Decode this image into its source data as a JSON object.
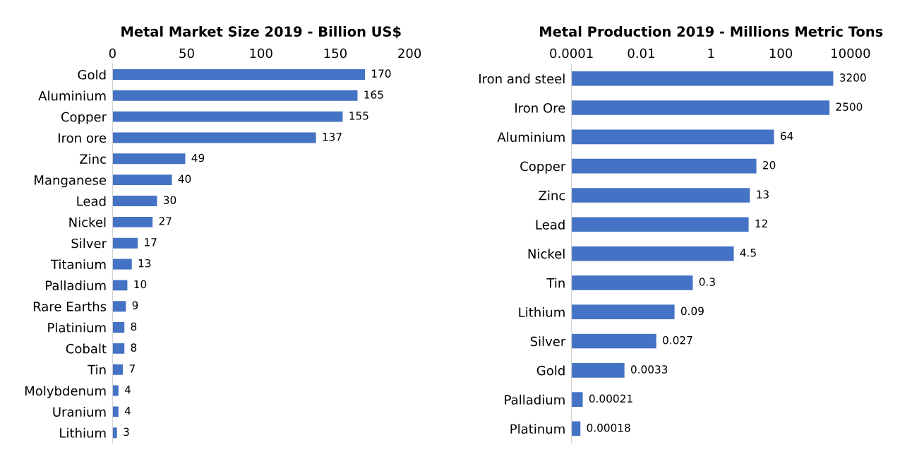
{
  "chart_data": [
    {
      "type": "bar",
      "orientation": "horizontal",
      "title": "Metal Market Size 2019 - Billion US$",
      "categories": [
        "Gold",
        "Aluminium",
        "Copper",
        "Iron ore",
        "Zinc",
        "Manganese",
        "Lead",
        "Nickel",
        "Silver",
        "Titanium",
        "Palladium",
        "Rare Earths",
        "Platinium",
        "Cobalt",
        "Tin",
        "Molybdenum",
        "Uranium",
        "Lithium"
      ],
      "values": [
        170,
        165,
        155,
        137,
        49,
        40,
        30,
        27,
        17,
        13,
        10,
        9,
        8,
        8,
        7,
        4,
        4,
        3
      ],
      "color": "#4472c4",
      "xlim": [
        0,
        200
      ],
      "xticks": [
        0,
        50,
        100,
        150,
        200
      ],
      "data_labels": true
    },
    {
      "type": "bar",
      "orientation": "horizontal",
      "title": "Metal Production 2019 - Millions Metric Tons",
      "log": "x",
      "categories": [
        "Iron and steel",
        "Iron Ore",
        "Aluminium",
        "Copper",
        "Zinc",
        "Lead",
        "Nickel",
        "Tin",
        "Lithium",
        "Silver",
        "Gold",
        "Palladium",
        "Platinum"
      ],
      "values": [
        3200,
        2500,
        64,
        20,
        13,
        12,
        4.5,
        0.3,
        0.09,
        0.027,
        0.0033,
        0.00021,
        0.00018
      ],
      "color": "#4472c4",
      "xlim": [
        0.0001,
        10000
      ],
      "xticks": [
        {
          "value": 0.0001,
          "label": "0.0001"
        },
        {
          "value": 0.01,
          "label": "0.01"
        },
        1,
        100,
        10000
      ],
      "data_labels": true
    }
  ]
}
